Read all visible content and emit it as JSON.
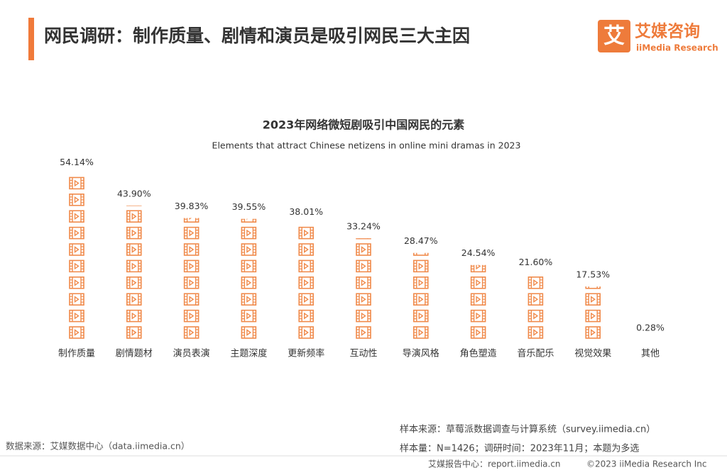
{
  "header": {
    "title": "网民调研：制作质量、剧情和演员是吸引网民三大主因",
    "logo_mark": "艾",
    "logo_name": "艾媒咨询",
    "logo_sub": "iiMedia Research"
  },
  "chart_data": {
    "type": "pictograph",
    "title": "2023年网络微短剧吸引中国网民的元素",
    "subtitle": "Elements that attract Chinese netizens in online mini dramas in 2023",
    "categories": [
      "制作质量",
      "剧情题材",
      "演员表演",
      "主题深度",
      "更新频率",
      "互动性",
      "导演风格",
      "角色塑造",
      "音乐配乐",
      "视觉效果",
      "其他"
    ],
    "values": [
      54.14,
      43.9,
      39.83,
      39.55,
      38.01,
      33.24,
      28.47,
      24.54,
      21.6,
      17.53,
      0.28
    ],
    "value_labels": [
      "54.14%",
      "43.90%",
      "39.83%",
      "39.55%",
      "38.01%",
      "33.24%",
      "28.47%",
      "24.54%",
      "21.60%",
      "17.53%",
      "0.28%"
    ],
    "color": "#f08a4b"
  },
  "footer": {
    "data_source": "数据来源：艾媒数据中心（data.iimedia.cn）",
    "sample_source": "样本来源：草莓派数据调查与计算系统（survey.iimedia.cn）",
    "sample_info": "样本量：N=1426；调研时间：2023年11月；本题为多选",
    "report_center": "艾媒报告中心：report.iimedia.cn",
    "copyright": "©2023  iiMedia Research  Inc"
  }
}
